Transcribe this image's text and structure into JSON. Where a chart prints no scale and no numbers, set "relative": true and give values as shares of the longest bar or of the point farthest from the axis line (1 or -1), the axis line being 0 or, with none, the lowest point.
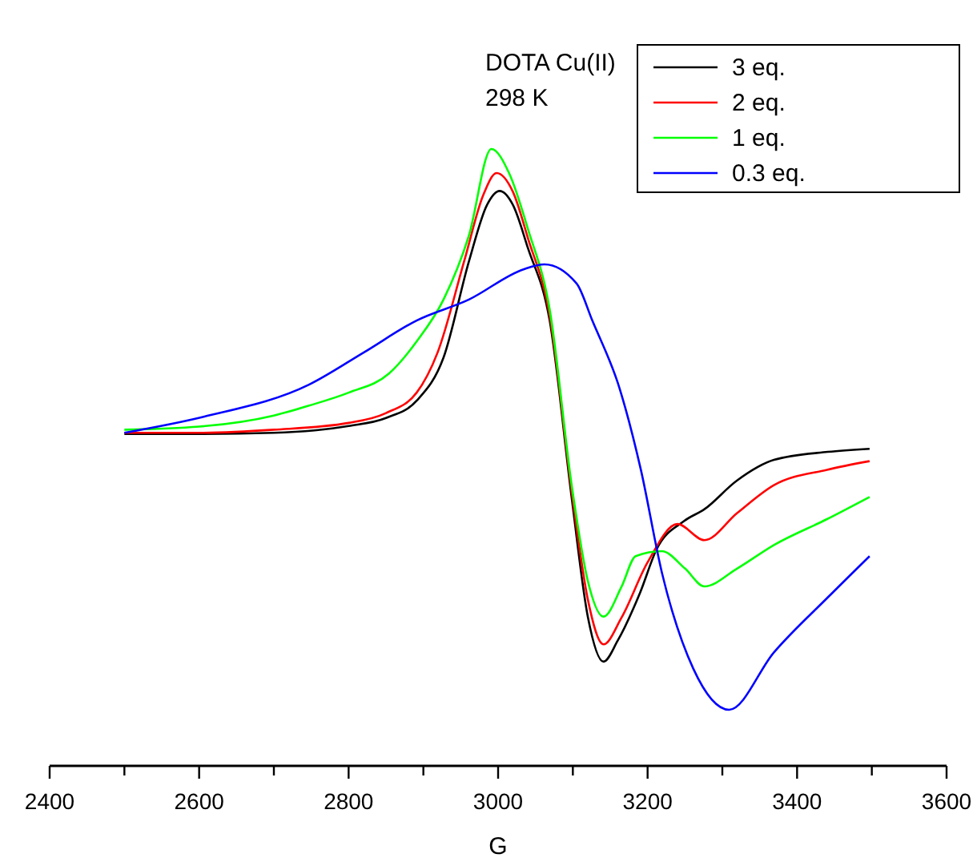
{
  "chart_data": {
    "type": "line",
    "relative": true,
    "xlabel": "G",
    "annotations": [
      "DOTA Cu(II)",
      "298 K"
    ],
    "xlim": [
      2400,
      3600
    ],
    "xticks": [
      2400,
      {
        "value": 2500,
        "label": null
      },
      2600,
      {
        "value": 2700,
        "label": null
      },
      2800,
      {
        "value": 2900,
        "label": null
      },
      3000,
      {
        "value": 3100,
        "label": null
      },
      3200,
      {
        "value": 3300,
        "label": null
      },
      3400,
      {
        "value": 3500,
        "label": null
      },
      3600
    ],
    "legend": "top right",
    "grid": false,
    "marker": "none",
    "line_style": "solid",
    "tick_labels": "x",
    "series": [
      {
        "name": "3 eq.",
        "color": "#000000",
        "x": [
          2500,
          2600,
          2700,
          2800,
          2850,
          2891,
          2927,
          2961,
          2985,
          3002,
          3020,
          3040,
          3069,
          3099,
          3120,
          3141,
          3160,
          3190,
          3212,
          3249,
          3276,
          3319,
          3369,
          3441,
          3497
        ],
        "values": [
          0.538,
          0.538,
          0.54,
          0.551,
          0.564,
          0.592,
          0.662,
          0.818,
          0.909,
          0.932,
          0.909,
          0.839,
          0.722,
          0.429,
          0.242,
          0.169,
          0.203,
          0.281,
          0.351,
          0.397,
          0.416,
          0.462,
          0.496,
          0.509,
          0.514
        ]
      },
      {
        "name": "2 eq.",
        "color": "#ff0000",
        "x": [
          2500,
          2600,
          2700,
          2800,
          2850,
          2891,
          2919,
          2955,
          2980,
          2998,
          3020,
          3040,
          3069,
          3099,
          3120,
          3141,
          3165,
          3200,
          3240,
          3276,
          3320,
          3369,
          3440,
          3497
        ],
        "values": [
          0.54,
          0.54,
          0.545,
          0.556,
          0.572,
          0.605,
          0.67,
          0.82,
          0.925,
          0.961,
          0.93,
          0.855,
          0.73,
          0.44,
          0.27,
          0.197,
          0.24,
          0.33,
          0.392,
          0.366,
          0.41,
          0.455,
          0.48,
          0.494
        ]
      },
      {
        "name": "1 eq.",
        "color": "#00ff00",
        "x": [
          2500,
          2600,
          2700,
          2747,
          2800,
          2854,
          2891,
          2927,
          2961,
          2991,
          3015,
          3040,
          3069,
          3099,
          3120,
          3141,
          3165,
          3184,
          3219,
          3250,
          3276,
          3320,
          3369,
          3440,
          3497
        ],
        "values": [
          0.545,
          0.55,
          0.568,
          0.584,
          0.605,
          0.636,
          0.688,
          0.756,
          0.86,
          1.0,
          0.96,
          0.87,
          0.74,
          0.45,
          0.3,
          0.242,
          0.29,
          0.34,
          0.348,
          0.32,
          0.291,
          0.32,
          0.358,
          0.4,
          0.436
        ]
      },
      {
        "name": "0.3 eq.",
        "color": "#0000ff",
        "x": [
          2500,
          2606,
          2747,
          2820,
          2891,
          2961,
          3034,
          3062,
          3105,
          3126,
          3163,
          3191,
          3219,
          3261,
          3309,
          3369,
          3441,
          3497
        ],
        "values": [
          0.54,
          0.566,
          0.618,
          0.67,
          0.722,
          0.756,
          0.805,
          0.813,
          0.782,
          0.722,
          0.61,
          0.48,
          0.314,
          0.158,
          0.091,
          0.184,
          0.273,
          0.34
        ]
      }
    ]
  }
}
